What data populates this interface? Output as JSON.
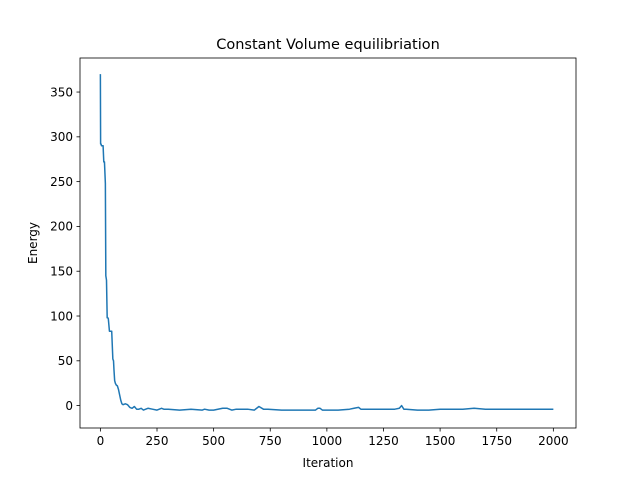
{
  "chart_data": {
    "type": "line",
    "title": "Constant Volume equilibriation",
    "xlabel": "Iteration",
    "ylabel": "Energy",
    "xlim": [
      -90,
      2100
    ],
    "ylim": [
      -25,
      388
    ],
    "xticks": [
      0,
      250,
      500,
      750,
      1000,
      1250,
      1500,
      1750,
      2000
    ],
    "yticks": [
      0,
      50,
      100,
      150,
      200,
      250,
      300,
      350
    ],
    "grid": false,
    "legend": "none",
    "series": [
      {
        "color": "#1f77b4",
        "x": [
          0,
          1,
          3,
          5,
          8,
          12,
          15,
          18,
          22,
          24,
          27,
          30,
          33,
          35,
          40,
          45,
          50,
          55,
          58,
          60,
          63,
          66,
          70,
          75,
          80,
          85,
          90,
          95,
          100,
          110,
          120,
          130,
          140,
          150,
          160,
          170,
          180,
          190,
          200,
          210,
          230,
          250,
          270,
          280,
          300,
          350,
          400,
          450,
          460,
          480,
          500,
          540,
          560,
          580,
          600,
          650,
          680,
          700,
          720,
          740,
          800,
          850,
          900,
          950,
          960,
          970,
          980,
          1000,
          1050,
          1100,
          1120,
          1140,
          1150,
          1200,
          1250,
          1300,
          1320,
          1330,
          1340,
          1350,
          1400,
          1450,
          1500,
          1550,
          1600,
          1650,
          1700,
          1750,
          1800,
          1850,
          1900,
          1950,
          2000
        ],
        "y": [
          370,
          292,
          292,
          290,
          290,
          290,
          272,
          272,
          248,
          145,
          140,
          98,
          98,
          97,
          83,
          83,
          83,
          52,
          50,
          40,
          28,
          25,
          23,
          22,
          18,
          12,
          6,
          2,
          1,
          2,
          1,
          -2,
          -3,
          -1,
          -4,
          -4,
          -3,
          -5,
          -4,
          -3,
          -4,
          -5,
          -3,
          -4,
          -4,
          -5,
          -4,
          -5,
          -4,
          -5,
          -5,
          -3,
          -3,
          -5,
          -4,
          -4,
          -5,
          -1,
          -4,
          -4,
          -5,
          -5,
          -5,
          -5,
          -3,
          -3,
          -5,
          -5,
          -5,
          -4,
          -3,
          -2,
          -4,
          -4,
          -4,
          -4,
          -3,
          0,
          -4,
          -4,
          -5,
          -5,
          -4,
          -4,
          -4,
          -3,
          -4,
          -4,
          -4,
          -4,
          -4,
          -4,
          -4
        ]
      }
    ]
  }
}
